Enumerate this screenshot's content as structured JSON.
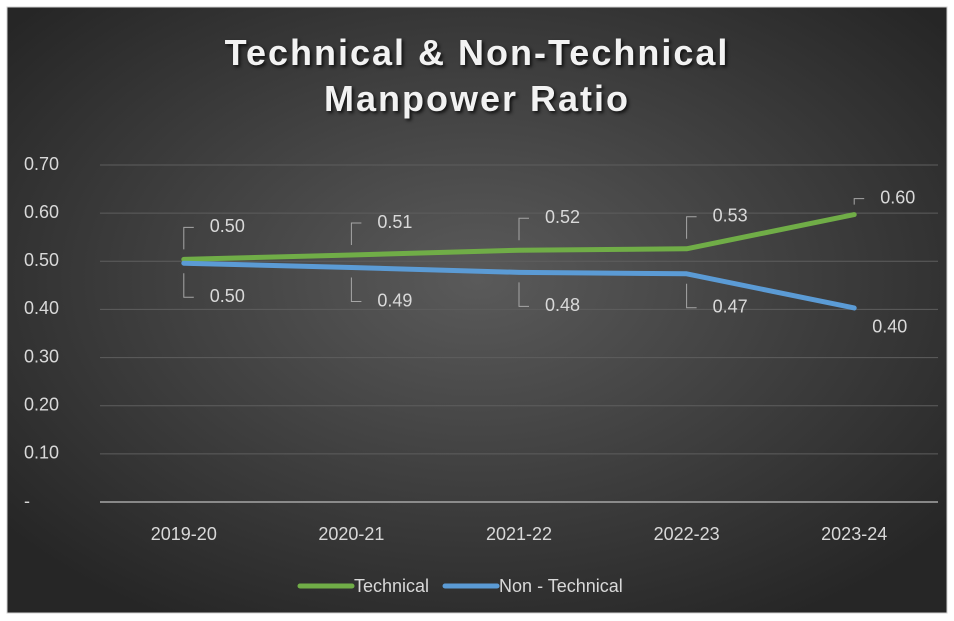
{
  "chart_data": {
    "type": "line",
    "title": "Technical & Non-Technical Manpower Ratio",
    "categories": [
      "2019-20",
      "2020-21",
      "2021-22",
      "2022-23",
      "2023-24"
    ],
    "series": [
      {
        "name": "Technical",
        "color": "#70ad47",
        "values": [
          0.504,
          0.513,
          0.523,
          0.526,
          0.597
        ],
        "value_labels": [
          "0.50",
          "0.51",
          "0.52",
          "0.53",
          "0.60"
        ]
      },
      {
        "name": "Non - Technical",
        "color": "#5b9bd5",
        "values": [
          0.496,
          0.487,
          0.477,
          0.474,
          0.403
        ],
        "value_labels": [
          "0.50",
          "0.49",
          "0.48",
          "0.47",
          "0.40"
        ]
      }
    ],
    "ylim": [
      0,
      0.7
    ],
    "yticks": [
      {
        "value": 0,
        "label": "-"
      },
      {
        "value": 0.1,
        "label": "0.10"
      },
      {
        "value": 0.2,
        "label": "0.20"
      },
      {
        "value": 0.3,
        "label": "0.30"
      },
      {
        "value": 0.4,
        "label": "0.40"
      },
      {
        "value": 0.5,
        "label": "0.50"
      },
      {
        "value": 0.6,
        "label": "0.60"
      },
      {
        "value": 0.7,
        "label": "0.70"
      }
    ],
    "grid": true,
    "legend": "bottom"
  }
}
